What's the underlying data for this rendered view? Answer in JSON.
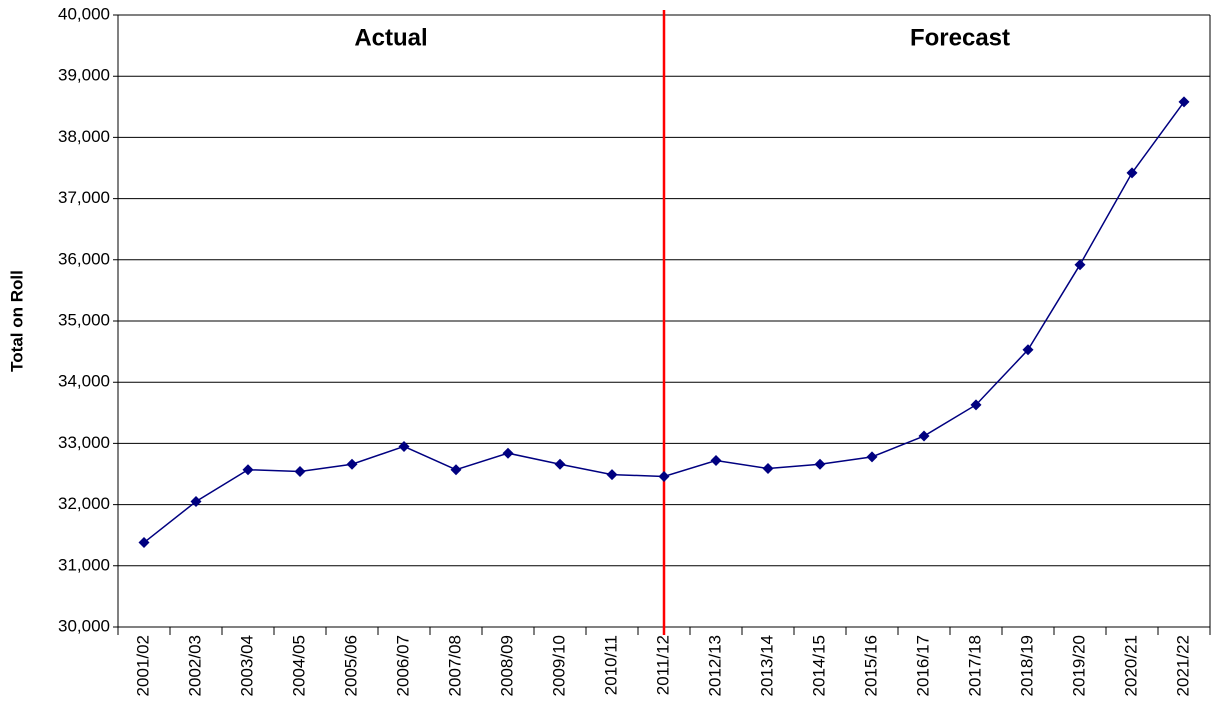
{
  "chart_data": {
    "type": "line",
    "y_label": "Total on Roll",
    "annotations": [
      "Actual",
      "Forecast"
    ],
    "categories": [
      "2001/02",
      "2002/03",
      "2003/04",
      "2004/05",
      "2005/06",
      "2006/07",
      "2007/08",
      "2008/09",
      "2009/10",
      "2010/11",
      "2011/12",
      "2012/13",
      "2013/14",
      "2014/15",
      "2015/16",
      "2016/17",
      "2017/18",
      "2018/19",
      "2019/20",
      "2020/21",
      "2021/22"
    ],
    "series": [
      {
        "color": "#000080",
        "values": [
          31380,
          32050,
          32570,
          32540,
          32660,
          32950,
          32570,
          32840,
          32660,
          32490,
          32460,
          32720,
          32590,
          32660,
          32780,
          33120,
          33630,
          34530,
          35920,
          37420,
          38580
        ]
      }
    ],
    "divider": {
      "category": "2011/12",
      "color": "#ff0000"
    },
    "ylim": [
      30000,
      40000
    ],
    "yticks": [
      {
        "value": 30000,
        "label": "30,000"
      },
      {
        "value": 31000,
        "label": "31,000"
      },
      {
        "value": 32000,
        "label": "32,000"
      },
      {
        "value": 33000,
        "label": "33,000"
      },
      {
        "value": 34000,
        "label": "34,000"
      },
      {
        "value": 35000,
        "label": "35,000"
      },
      {
        "value": 36000,
        "label": "36,000"
      },
      {
        "value": 37000,
        "label": "37,000"
      },
      {
        "value": 38000,
        "label": "38,000"
      },
      {
        "value": 39000,
        "label": "39,000"
      },
      {
        "value": 40000,
        "label": "40,000"
      }
    ],
    "grid": true
  }
}
